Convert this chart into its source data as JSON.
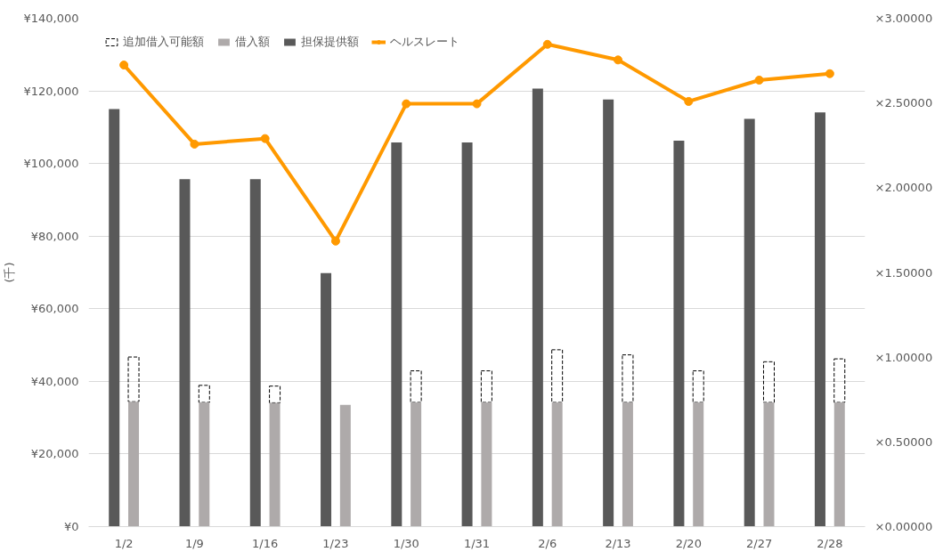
{
  "chart_data": {
    "type": "bar",
    "categories": [
      "1/2",
      "1/9",
      "1/16",
      "1/23",
      "1/30",
      "1/31",
      "2/6",
      "2/13",
      "2/20",
      "2/27",
      "2/28"
    ],
    "ylabel": "(千)",
    "series": [
      {
        "name": "追加借入可能額",
        "color": "#000000",
        "line_style": "dashed",
        "values": [
          12300,
          4700,
          4600,
          null,
          8700,
          8700,
          14500,
          13100,
          8700,
          11200,
          12000
        ],
        "base": [
          34400,
          34200,
          34100,
          null,
          34200,
          34200,
          34200,
          34200,
          34200,
          34200,
          34200
        ]
      },
      {
        "name": "借入額",
        "color": "#aeaaaa",
        "values": [
          34400,
          34200,
          34100,
          33500,
          34200,
          34200,
          34200,
          34200,
          34200,
          34200,
          34200
        ]
      },
      {
        "name": "担保提供額",
        "color": "#595959",
        "values": [
          115000,
          95700,
          95700,
          69800,
          105800,
          105800,
          120600,
          117600,
          106300,
          112300,
          114100
        ]
      },
      {
        "name": "ヘルスレート",
        "type": "line",
        "axis": "y2",
        "color": "#ff9900",
        "marker": "circle",
        "values": [
          2.724,
          2.257,
          2.29,
          1.685,
          2.495,
          2.495,
          2.846,
          2.754,
          2.509,
          2.635,
          2.673
        ]
      }
    ],
    "ylim": [
      0,
      140000
    ],
    "yticks": [
      {
        "value": 0,
        "label": "¥0"
      },
      {
        "value": 20000,
        "label": "¥20,000"
      },
      {
        "value": 40000,
        "label": "¥40,000"
      },
      {
        "value": 60000,
        "label": "¥60,000"
      },
      {
        "value": 80000,
        "label": "¥80,000"
      },
      {
        "value": 100000,
        "label": "¥100,000"
      },
      {
        "value": 120000,
        "label": "¥120,000"
      },
      {
        "value": 140000,
        "label": "¥140,000"
      }
    ],
    "y2lim": [
      0,
      3
    ],
    "y2ticks": [
      {
        "value": 0,
        "label": "×0.00000"
      },
      {
        "value": 0.5,
        "label": "×0.50000"
      },
      {
        "value": 1,
        "label": "×1.00000"
      },
      {
        "value": 1.5,
        "label": "×1.50000"
      },
      {
        "value": 2,
        "label": "×2.00000"
      },
      {
        "value": 2.5,
        "label": "×2.50000"
      },
      {
        "value": 3,
        "label": "×3.00000"
      }
    ],
    "grid": "y",
    "legend": "top left"
  }
}
